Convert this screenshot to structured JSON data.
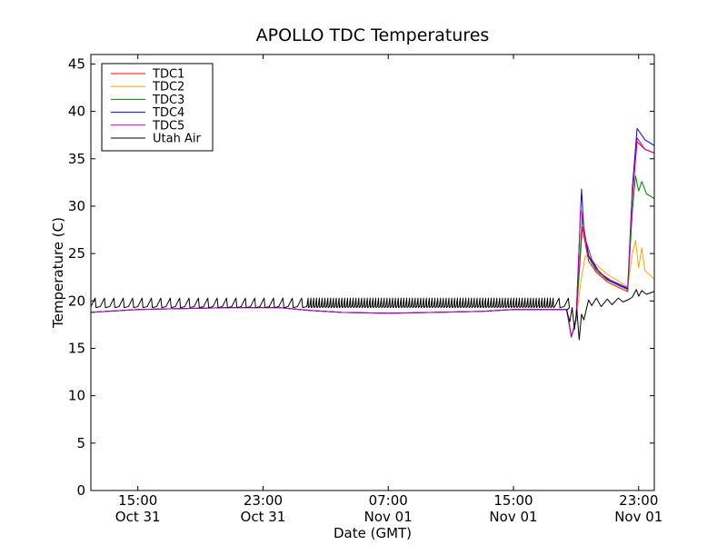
{
  "chart_data": {
    "type": "line",
    "title": "APOLLO TDC Temperatures",
    "xlabel": "Date (GMT)",
    "ylabel": "Temperature (C)",
    "x_unit": "hours since Oct 31 12:00 GMT",
    "xlim": [
      0,
      36
    ],
    "ylim": [
      0,
      46
    ],
    "grid": false,
    "legend_position": "top-left",
    "yticks": [
      {
        "value": 0,
        "label": "0"
      },
      {
        "value": 5,
        "label": "5"
      },
      {
        "value": 10,
        "label": "10"
      },
      {
        "value": 15,
        "label": "15"
      },
      {
        "value": 20,
        "label": "20"
      },
      {
        "value": 25,
        "label": "25"
      },
      {
        "value": 30,
        "label": "30"
      },
      {
        "value": 35,
        "label": "35"
      },
      {
        "value": 40,
        "label": "40"
      },
      {
        "value": 45,
        "label": "45"
      }
    ],
    "xticks": [
      {
        "value": 3,
        "time": "15:00",
        "date": "Oct 31"
      },
      {
        "value": 11,
        "time": "23:00",
        "date": "Oct 31"
      },
      {
        "value": 19,
        "time": "07:00",
        "date": "Nov 01"
      },
      {
        "value": 27,
        "time": "15:00",
        "date": "Nov 01"
      },
      {
        "value": 35,
        "time": "23:00",
        "date": "Nov 01"
      }
    ],
    "series": [
      {
        "name": "TDC1",
        "color": "#ff0000",
        "points": [
          [
            0,
            18.8
          ],
          [
            3,
            19.1
          ],
          [
            6,
            19.2
          ],
          [
            9,
            19.3
          ],
          [
            12,
            19.3
          ],
          [
            14,
            19.0
          ],
          [
            16,
            18.8
          ],
          [
            19,
            18.7
          ],
          [
            22,
            18.8
          ],
          [
            25,
            18.9
          ],
          [
            27,
            19.1
          ],
          [
            29,
            19.1
          ],
          [
            30.4,
            19.1
          ],
          [
            30.7,
            16.2
          ],
          [
            31.0,
            18.0
          ],
          [
            31.4,
            27.8
          ],
          [
            31.8,
            24.2
          ],
          [
            32.3,
            23.0
          ],
          [
            33.0,
            22.0
          ],
          [
            34.0,
            21.2
          ],
          [
            34.3,
            21.0
          ],
          [
            34.6,
            31.0
          ],
          [
            34.9,
            36.8
          ],
          [
            35.4,
            36.0
          ],
          [
            36,
            35.6
          ]
        ]
      },
      {
        "name": "TDC2",
        "color": "#ffa500",
        "points": [
          [
            0,
            18.8
          ],
          [
            3,
            19.1
          ],
          [
            6,
            19.2
          ],
          [
            9,
            19.3
          ],
          [
            12,
            19.3
          ],
          [
            14,
            19.0
          ],
          [
            16,
            18.8
          ],
          [
            19,
            18.7
          ],
          [
            22,
            18.8
          ],
          [
            25,
            18.9
          ],
          [
            27,
            19.1
          ],
          [
            29,
            19.1
          ],
          [
            30.4,
            19.1
          ],
          [
            30.7,
            16.2
          ],
          [
            31.0,
            18.0
          ],
          [
            31.3,
            22.0
          ],
          [
            31.6,
            24.8
          ],
          [
            32.3,
            23.8
          ],
          [
            33.0,
            22.8
          ],
          [
            34.0,
            21.8
          ],
          [
            34.3,
            21.5
          ],
          [
            34.6,
            25.0
          ],
          [
            34.8,
            26.4
          ],
          [
            35.0,
            23.5
          ],
          [
            35.2,
            25.6
          ],
          [
            35.4,
            23.2
          ],
          [
            36,
            22.3
          ]
        ]
      },
      {
        "name": "TDC3",
        "color": "#008000",
        "points": [
          [
            0,
            18.8
          ],
          [
            3,
            19.1
          ],
          [
            6,
            19.2
          ],
          [
            9,
            19.3
          ],
          [
            12,
            19.3
          ],
          [
            14,
            19.0
          ],
          [
            16,
            18.8
          ],
          [
            19,
            18.7
          ],
          [
            22,
            18.8
          ],
          [
            25,
            18.9
          ],
          [
            27,
            19.1
          ],
          [
            29,
            19.1
          ],
          [
            30.4,
            19.1
          ],
          [
            30.7,
            16.2
          ],
          [
            31.0,
            18.0
          ],
          [
            31.4,
            28.8
          ],
          [
            31.8,
            24.6
          ],
          [
            32.3,
            23.2
          ],
          [
            33.0,
            22.2
          ],
          [
            34.0,
            21.4
          ],
          [
            34.3,
            21.2
          ],
          [
            34.6,
            29.5
          ],
          [
            34.8,
            33.2
          ],
          [
            35.0,
            31.6
          ],
          [
            35.2,
            32.6
          ],
          [
            35.5,
            31.3
          ],
          [
            36,
            30.8
          ]
        ]
      },
      {
        "name": "TDC4",
        "color": "#0000ff",
        "points": [
          [
            0,
            18.8
          ],
          [
            3,
            19.1
          ],
          [
            6,
            19.2
          ],
          [
            9,
            19.3
          ],
          [
            12,
            19.3
          ],
          [
            14,
            19.0
          ],
          [
            16,
            18.8
          ],
          [
            19,
            18.7
          ],
          [
            22,
            18.8
          ],
          [
            25,
            18.9
          ],
          [
            27,
            19.1
          ],
          [
            29,
            19.1
          ],
          [
            30.4,
            19.1
          ],
          [
            30.7,
            16.2
          ],
          [
            31.0,
            18.0
          ],
          [
            31.2,
            26.0
          ],
          [
            31.35,
            31.8
          ],
          [
            31.5,
            27.5
          ],
          [
            31.8,
            24.8
          ],
          [
            32.3,
            23.4
          ],
          [
            33.0,
            22.3
          ],
          [
            34.0,
            21.5
          ],
          [
            34.3,
            21.3
          ],
          [
            34.6,
            32.0
          ],
          [
            34.9,
            38.2
          ],
          [
            35.4,
            37.0
          ],
          [
            36,
            36.4
          ]
        ]
      },
      {
        "name": "TDC5",
        "color": "#bf00bf",
        "points": [
          [
            0,
            18.8
          ],
          [
            3,
            19.1
          ],
          [
            6,
            19.2
          ],
          [
            9,
            19.3
          ],
          [
            12,
            19.3
          ],
          [
            14,
            19.0
          ],
          [
            16,
            18.8
          ],
          [
            19,
            18.7
          ],
          [
            22,
            18.8
          ],
          [
            25,
            18.9
          ],
          [
            27,
            19.1
          ],
          [
            29,
            19.1
          ],
          [
            30.4,
            19.1
          ],
          [
            30.7,
            16.2
          ],
          [
            31.0,
            18.0
          ],
          [
            31.3,
            29.8
          ],
          [
            31.6,
            26.5
          ],
          [
            32.0,
            24.4
          ],
          [
            32.5,
            23.0
          ],
          [
            33.2,
            22.2
          ],
          [
            34.0,
            21.6
          ],
          [
            34.3,
            21.4
          ],
          [
            34.6,
            31.5
          ],
          [
            34.9,
            37.2
          ],
          [
            35.4,
            36.0
          ],
          [
            36,
            35.6
          ]
        ]
      },
      {
        "name": "Utah Air",
        "color": "#000000",
        "points": "generated"
      }
    ]
  }
}
